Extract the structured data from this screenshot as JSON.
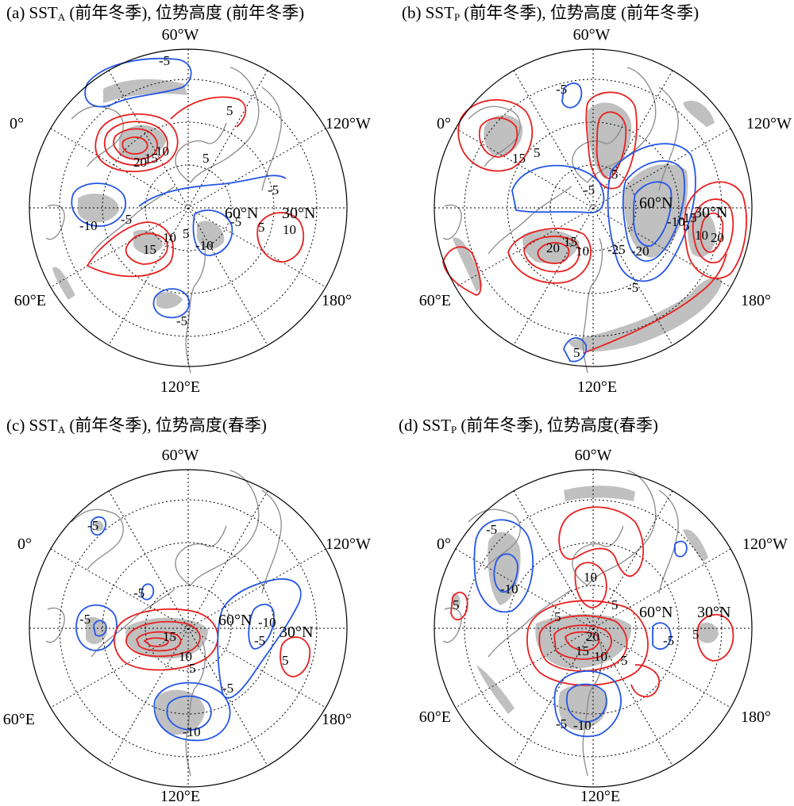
{
  "colors": {
    "positive": "#e8201f",
    "negative": "#2456e6",
    "shading": "#c0c0c0",
    "coast": "#8a8a8a",
    "grid": "#000000"
  },
  "chart_data": [
    {
      "type": "contour",
      "panel": "a",
      "title_prefix": "(a) SST",
      "title_sub": "A",
      "title_suffix": " (前年冬季), 位势高度 (前年冬季)",
      "lon_labels": [
        "60°W",
        "120°W",
        "180°",
        "120°E",
        "60°E",
        "0°"
      ],
      "lat_labels": [
        "60°N",
        "30°N"
      ],
      "contour_labels": [
        "-5",
        "20",
        "15",
        "10",
        "5",
        "5",
        "-5",
        "-10",
        "-5",
        "15",
        "10",
        "5",
        "-10",
        "-5",
        "10",
        "5",
        "-5"
      ]
    },
    {
      "type": "contour",
      "panel": "b",
      "title_prefix": "(b) SST",
      "title_sub": "P",
      "title_suffix": " (前年冬季), 位势高度 (前年冬季)",
      "lon_labels": [
        "60°W",
        "120°W",
        "180°",
        "120°E",
        "60°E",
        "0°"
      ],
      "lat_labels": [
        "60°N",
        "30°N"
      ],
      "contour_labels": [
        "-5",
        "15",
        "5",
        "5",
        "-10",
        "-5",
        "-15",
        "-20",
        "-25",
        "20",
        "15",
        "10",
        "20",
        "10",
        "5",
        "-5",
        "5"
      ]
    },
    {
      "type": "contour",
      "panel": "c",
      "title_prefix": "(c) SST",
      "title_sub": "A",
      "title_suffix": " (前年冬季), 位势高度(春季)",
      "lon_labels": [
        "60°W",
        "120°W",
        "180°",
        "120°E",
        "60°E",
        "0°"
      ],
      "lat_labels": [
        "60°N",
        "30°N"
      ],
      "contour_labels": [
        "-5",
        "-5",
        "-5",
        "15",
        "10",
        "5",
        "-10",
        "-5",
        "5",
        "-5",
        "-10"
      ]
    },
    {
      "type": "contour",
      "panel": "d",
      "title_prefix": "(d) SST",
      "title_sub": "P",
      "title_suffix": " (前年冬季), 位势高度(春季)",
      "lon_labels": [
        "60°W",
        "120°W",
        "180°",
        "120°E",
        "60°E",
        "0°"
      ],
      "lat_labels": [
        "60°N",
        "30°N"
      ],
      "contour_labels": [
        "-5",
        "-10",
        "5",
        "10",
        "5",
        "20",
        "15",
        "10",
        "5",
        "-5",
        "5",
        "-5",
        "-10",
        "5"
      ]
    }
  ]
}
